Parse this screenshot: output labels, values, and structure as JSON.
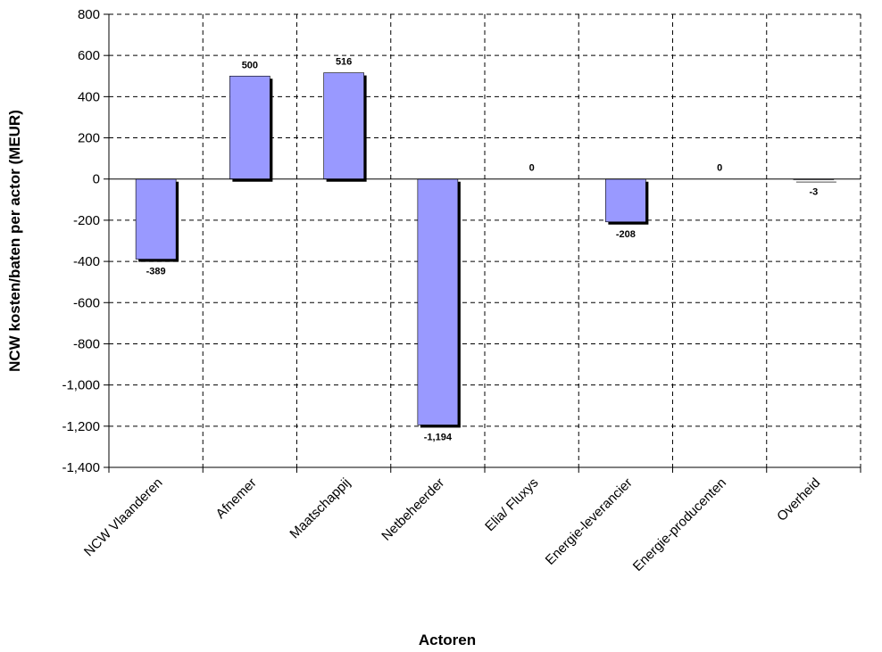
{
  "chart_data": {
    "type": "bar",
    "xlabel": "Actoren",
    "ylabel": "NCW kosten/baten per actor (MEUR)",
    "categories": [
      "NCW Vlaanderen",
      "Afnemer",
      "Maatschappij",
      "Netbeheerder",
      "Elia/ Fluxys",
      "Energie-leverancier",
      "Energie-producenten",
      "Overheid"
    ],
    "values": [
      -389,
      500,
      516,
      -1194,
      0,
      -208,
      0,
      -3
    ],
    "data_labels": [
      "-389",
      "500",
      "516",
      "-1,194",
      "0",
      "-208",
      "0",
      "-3"
    ],
    "ylim": [
      -1400,
      800
    ],
    "yticks": [
      800,
      600,
      400,
      200,
      0,
      -200,
      -400,
      -600,
      -800,
      -1000,
      -1200,
      -1400
    ],
    "ytick_labels": [
      "800",
      "600",
      "400",
      "200",
      "0",
      "-200",
      "-400",
      "-600",
      "-800",
      "-1,000",
      "-1,200",
      "-1,400"
    ],
    "grid": true,
    "legend": "none",
    "bar_color": "#9999ff",
    "shadow_color": "#000000"
  }
}
